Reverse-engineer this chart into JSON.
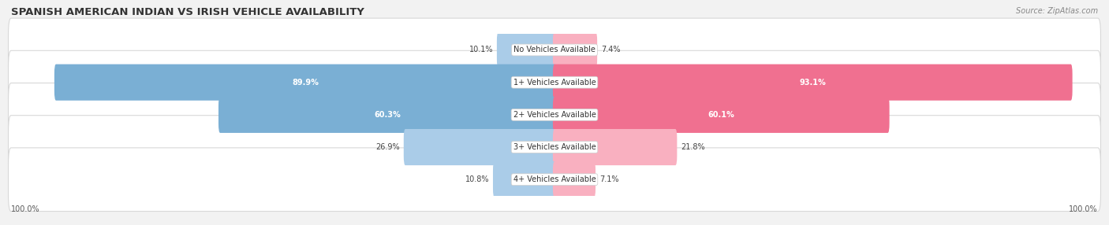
{
  "title": "SPANISH AMERICAN INDIAN VS IRISH VEHICLE AVAILABILITY",
  "source": "Source: ZipAtlas.com",
  "categories": [
    "No Vehicles Available",
    "1+ Vehicles Available",
    "2+ Vehicles Available",
    "3+ Vehicles Available",
    "4+ Vehicles Available"
  ],
  "spanish_values": [
    10.1,
    89.9,
    60.3,
    26.9,
    10.8
  ],
  "irish_values": [
    7.4,
    93.1,
    60.1,
    21.8,
    7.1
  ],
  "spanish_color": "#7aafd4",
  "irish_color": "#f07090",
  "spanish_light_color": "#aacce8",
  "irish_light_color": "#f9b0c0",
  "spanish_label": "Spanish American Indian",
  "irish_label": "Irish",
  "max_value": 100.0,
  "bar_height": 0.52,
  "background_color": "#f2f2f2",
  "row_bg_color": "#ffffff"
}
